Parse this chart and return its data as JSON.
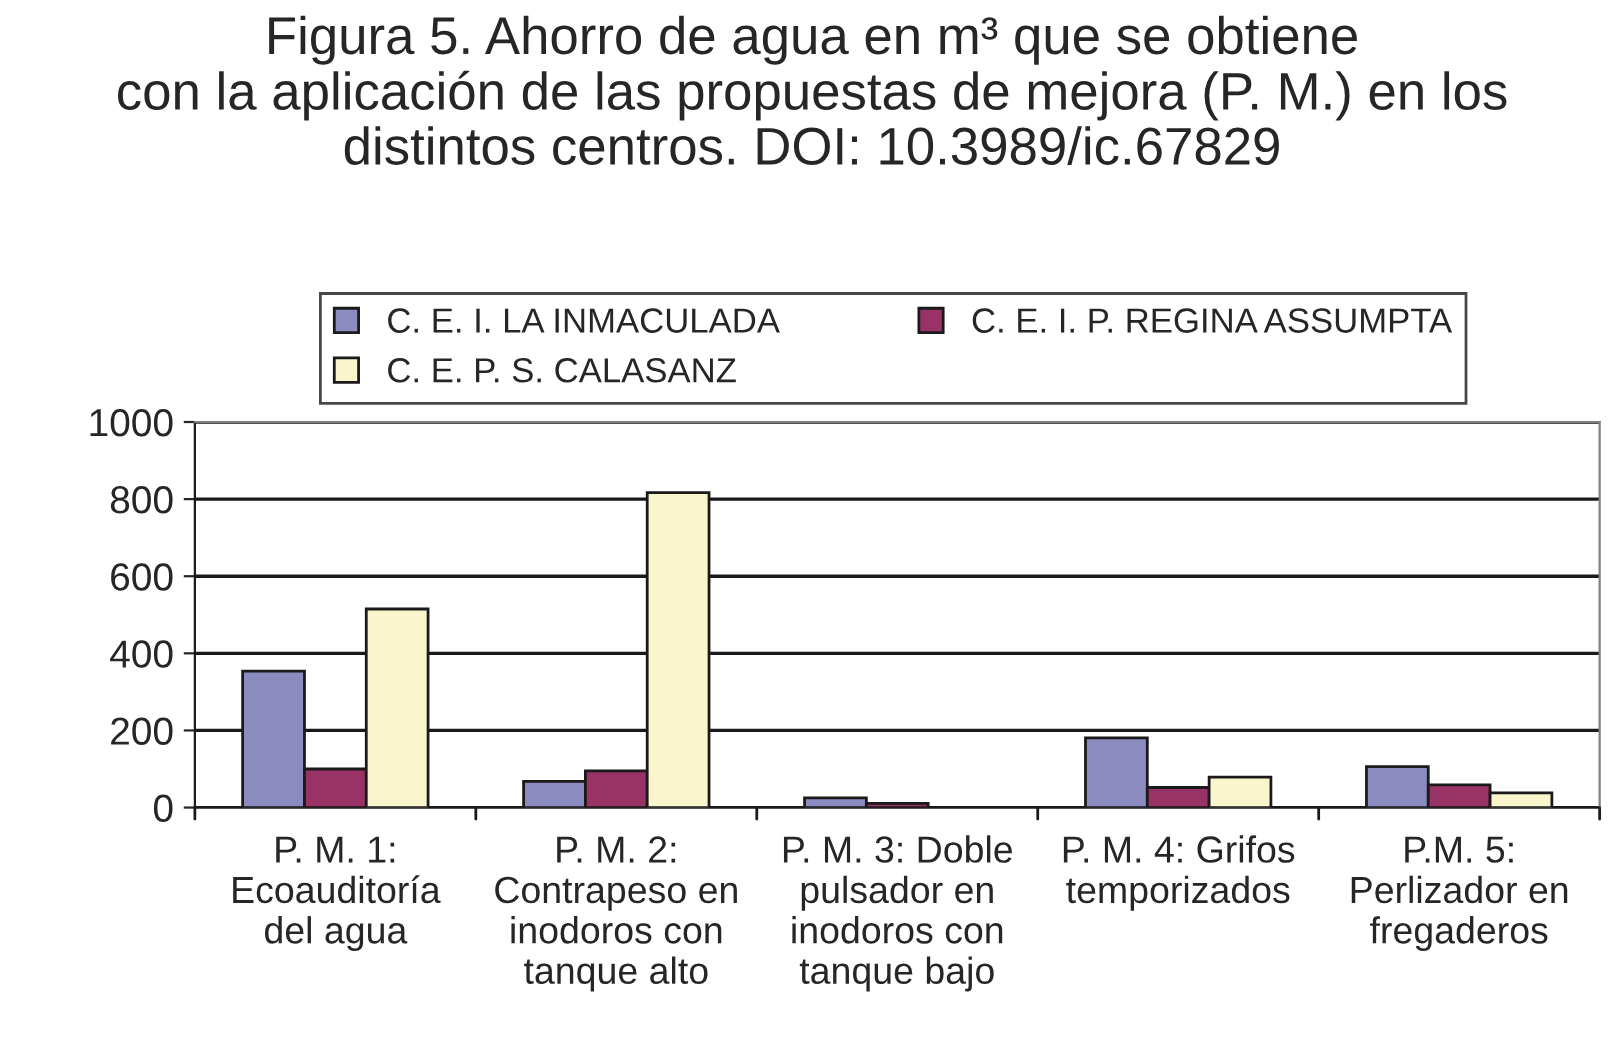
{
  "chart_data": {
    "type": "bar",
    "title": "Figura 5. Ahorro de agua en m³ que se obtiene\ncon la aplicación de las propuestas de mejora (P. M.) en los\ndistintos centros. DOI: 10.3989/ic.67829",
    "categories": [
      "P. M. 1:\nEcoauditoría\ndel agua",
      "P. M. 2:\nContrapeso en\ninodoros con\ntanque alto",
      "P. M. 3: Doble\npulsador en\ninodoros con\ntanque bajo",
      "P. M. 4: Grifos\ntemporizados",
      "P.M. 5:\nPerlizador en\nfregaderos"
    ],
    "series": [
      {
        "name": "C. E. I. LA INMACULADA",
        "color": "#8b8bc0",
        "values": [
          354,
          68,
          25,
          181,
          106
        ]
      },
      {
        "name": "C. E. I. P. REGINA ASSUMPTA",
        "color": "#993366",
        "values": [
          100,
          95,
          11,
          52,
          59
        ]
      },
      {
        "name": "C. E. P. S. CALASANZ",
        "color": "#f9f5cc",
        "values": [
          515,
          817,
          null,
          79,
          38
        ]
      }
    ],
    "ylim": [
      0,
      1000
    ],
    "yticks": [
      0,
      200,
      400,
      600,
      800,
      1000
    ],
    "grid": "y",
    "legend": "top"
  }
}
